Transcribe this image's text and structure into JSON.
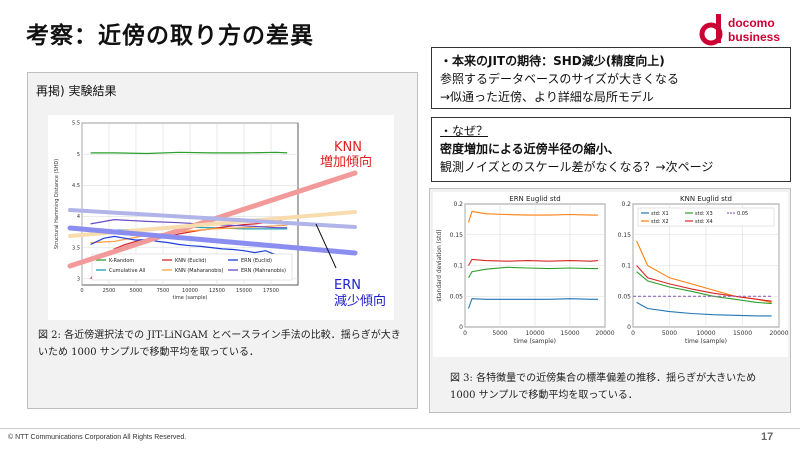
{
  "header": {
    "title": "考察：近傍の取り方の差異",
    "logo_line1": "docomo",
    "logo_line2": "business"
  },
  "left_panel": {
    "heading": "再掲) 実験結果",
    "caption": "図 2: 各近傍選択法での JIT-LiNGAM とベースライン手法の比較．揺らぎが大きいため 1000 サンプルで移動平均を取っている．",
    "annotation_knn_1": "KNN",
    "annotation_knn_2": "増加傾向",
    "annotation_ern_1": "ERN",
    "annotation_ern_2": "減少傾向"
  },
  "box1": {
    "line1": "・本来のJITの期待：SHD減少(精度向上)",
    "line2": "参照するデータベースのサイズが大きくなる",
    "line3": "→似通った近傍、より詳細な局所モデル"
  },
  "box2": {
    "line1": "・なぜ？",
    "line2": "密度増加による近傍半径の縮小、",
    "line3": "観測ノイズとのスケール差がなくなる？→次ページ"
  },
  "right_panel": {
    "caption": "図 3: 各特徴量での近傍集合の標準偏差の推移．揺らぎが大きいため 1000 サンプルで移動平均を取っている．"
  },
  "footer": {
    "copyright": "© NTT Communications Corporation All Rights Reserved.",
    "page": "17"
  },
  "colors": {
    "accent_red": "#e0201e",
    "accent_blue": "#2020d0",
    "brand": "#cc0033"
  },
  "chart_data": [
    {
      "type": "line",
      "title": "",
      "xlabel": "time (sample)",
      "ylabel": "Structural Hamming Distance (SHD)",
      "xlim": [
        0,
        20000
      ],
      "ylim": [
        2.9,
        5.5
      ],
      "x_ticks": [
        0,
        2500,
        5000,
        7500,
        10000,
        12500,
        15000,
        17500
      ],
      "y_ticks": [
        3.0,
        3.5,
        4.0,
        4.5,
        5.0,
        5.5
      ],
      "grid": true,
      "legend_position": "bottom",
      "series": [
        {
          "name": "K-Random",
          "color": "#2ca02c",
          "x": [
            800,
            3000,
            6000,
            9000,
            12000,
            15000,
            18000,
            19000
          ],
          "values": [
            5.02,
            5.02,
            5.01,
            5.03,
            5.02,
            5.02,
            5.03,
            5.02
          ]
        },
        {
          "name": "Cumulative All",
          "color": "#1f9eb4",
          "x": [
            800,
            3000,
            6000,
            9000,
            12000,
            15000,
            18000,
            19000
          ],
          "values": [
            3.75,
            3.78,
            3.8,
            3.83,
            3.82,
            3.8,
            3.8,
            3.8
          ]
        },
        {
          "name": "KNN (Euclid)",
          "color": "#d62728",
          "x": [
            800,
            2000,
            3000,
            4000,
            5000,
            6000,
            7000,
            8000,
            9000,
            10000,
            11000,
            12000,
            13000,
            14000,
            15000,
            16000,
            17000,
            18000,
            19000
          ],
          "values": [
            3.0,
            3.3,
            3.48,
            3.55,
            3.6,
            3.62,
            3.67,
            3.68,
            3.72,
            3.75,
            3.78,
            3.8,
            3.83,
            3.85,
            3.87,
            3.88,
            3.9,
            3.93,
            3.97
          ]
        },
        {
          "name": "KNN (Maharanobis)",
          "color": "#ff9f40",
          "x": [
            800,
            3000,
            6000,
            9000,
            12000,
            15000,
            18000,
            19000
          ],
          "values": [
            3.58,
            3.6,
            3.7,
            3.75,
            3.8,
            3.82,
            3.85,
            3.86
          ]
        },
        {
          "name": "ERN (Euclid)",
          "color": "#1f3fd6",
          "x": [
            800,
            2000,
            3000,
            4000,
            5000,
            6000,
            7000,
            8000,
            9000,
            10000,
            11000,
            12000,
            13000,
            14000,
            15000,
            16000,
            17000,
            18000,
            19000
          ],
          "values": [
            3.55,
            3.65,
            3.68,
            3.65,
            3.62,
            3.63,
            3.6,
            3.58,
            3.55,
            3.53,
            3.52,
            3.5,
            3.48,
            3.47,
            3.45,
            3.42,
            3.45,
            3.38,
            3.38
          ]
        },
        {
          "name": "ERN (Mahranobis)",
          "color": "#6a4cc7",
          "x": [
            800,
            3000,
            6000,
            9000,
            12000,
            15000,
            18000,
            19000
          ],
          "values": [
            3.88,
            3.95,
            3.92,
            3.9,
            3.87,
            3.85,
            3.82,
            3.82
          ]
        }
      ]
    },
    {
      "type": "line",
      "title": "ERN Euglid std",
      "xlabel": "time (sample)",
      "ylabel": "standard deviation (std)",
      "xlim": [
        0,
        20000
      ],
      "ylim": [
        0.0,
        0.2
      ],
      "x_ticks": [
        0,
        5000,
        10000,
        15000,
        20000
      ],
      "y_ticks": [
        0.0,
        0.05,
        0.1,
        0.15,
        0.2
      ],
      "grid": true,
      "series": [
        {
          "name": "",
          "color": "#ff7f0e",
          "x": [
            500,
            1000,
            3000,
            6000,
            9000,
            12000,
            15000,
            18000,
            19000
          ],
          "values": [
            0.17,
            0.188,
            0.184,
            0.183,
            0.182,
            0.182,
            0.183,
            0.182,
            0.182
          ]
        },
        {
          "name": "",
          "color": "#d62728",
          "x": [
            500,
            1000,
            3000,
            6000,
            9000,
            12000,
            15000,
            18000,
            19000
          ],
          "values": [
            0.1,
            0.11,
            0.108,
            0.107,
            0.108,
            0.107,
            0.108,
            0.107,
            0.108
          ]
        },
        {
          "name": "",
          "color": "#2ca02c",
          "x": [
            500,
            1000,
            3000,
            6000,
            9000,
            12000,
            15000,
            18000,
            19000
          ],
          "values": [
            0.08,
            0.09,
            0.094,
            0.097,
            0.096,
            0.095,
            0.096,
            0.095,
            0.095
          ]
        },
        {
          "name": "",
          "color": "#1f77b4",
          "x": [
            500,
            1000,
            3000,
            6000,
            9000,
            12000,
            15000,
            18000,
            19000
          ],
          "values": [
            0.03,
            0.046,
            0.045,
            0.045,
            0.045,
            0.045,
            0.046,
            0.045,
            0.045
          ]
        }
      ]
    },
    {
      "type": "line",
      "title": "KNN Euglid std",
      "xlabel": "time (sample)",
      "ylabel": "",
      "xlim": [
        0,
        20000
      ],
      "ylim": [
        0.0,
        0.2
      ],
      "x_ticks": [
        0,
        5000,
        10000,
        15000,
        20000
      ],
      "y_ticks": [
        0.0,
        0.05,
        0.1,
        0.15,
        0.2
      ],
      "grid": true,
      "legend_position": "top",
      "series": [
        {
          "name": "std: X1",
          "color": "#1f77b4",
          "x": [
            500,
            2000,
            5000,
            8000,
            11000,
            14000,
            17000,
            19000
          ],
          "values": [
            0.04,
            0.03,
            0.025,
            0.022,
            0.02,
            0.019,
            0.018,
            0.018
          ]
        },
        {
          "name": "std: X2",
          "color": "#ff7f0e",
          "x": [
            500,
            2000,
            5000,
            8000,
            11000,
            14000,
            17000,
            19000
          ],
          "values": [
            0.14,
            0.1,
            0.08,
            0.07,
            0.06,
            0.05,
            0.045,
            0.04
          ]
        },
        {
          "name": "std: X3",
          "color": "#2ca02c",
          "x": [
            500,
            2000,
            5000,
            8000,
            11000,
            14000,
            17000,
            19000
          ],
          "values": [
            0.09,
            0.075,
            0.065,
            0.058,
            0.05,
            0.045,
            0.04,
            0.038
          ]
        },
        {
          "name": "std: X4",
          "color": "#d62728",
          "x": [
            500,
            2000,
            5000,
            8000,
            11000,
            14000,
            17000,
            19000
          ],
          "values": [
            0.1,
            0.08,
            0.07,
            0.062,
            0.055,
            0.05,
            0.045,
            0.042
          ]
        },
        {
          "name": "0.05",
          "color": "#9467bd",
          "x": [
            0,
            19000
          ],
          "values": [
            0.05,
            0.05
          ]
        }
      ]
    }
  ]
}
